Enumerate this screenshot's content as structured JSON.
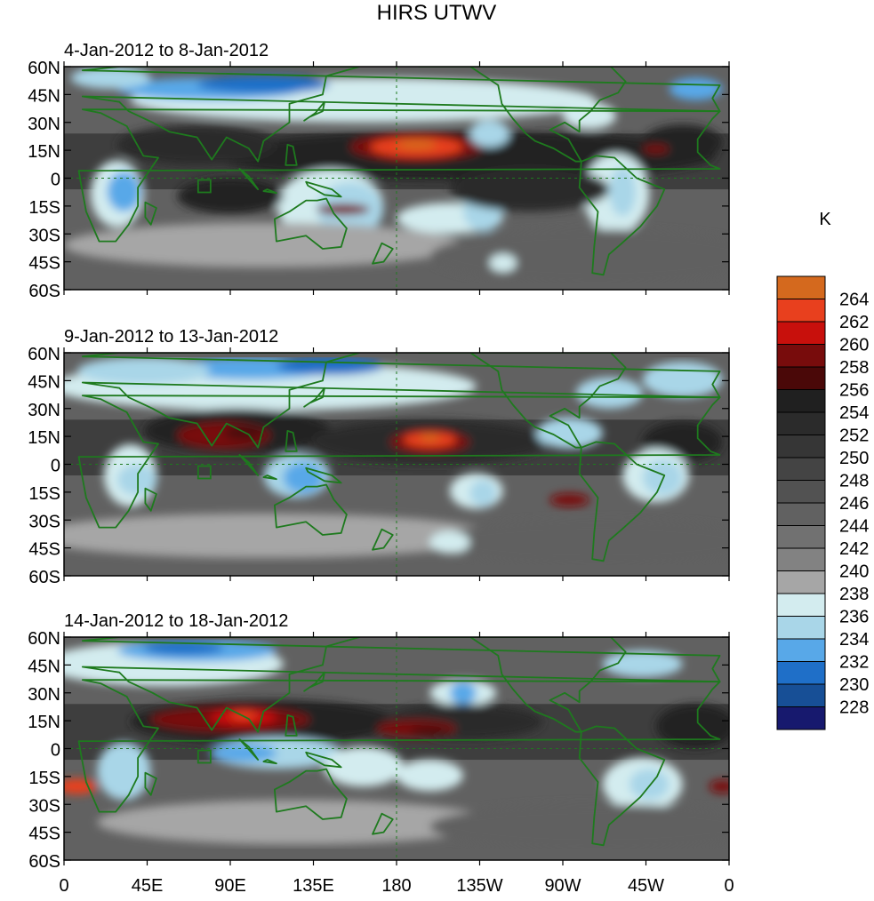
{
  "title": "HIRS UTWV",
  "units_label": "K",
  "panels": [
    {
      "date_range": "4-Jan-2012 to 8-Jan-2012"
    },
    {
      "date_range": "9-Jan-2012 to 13-Jan-2012"
    },
    {
      "date_range": "14-Jan-2012 to 18-Jan-2012"
    }
  ],
  "lat_labels": [
    "60N",
    "45N",
    "30N",
    "15N",
    "0",
    "15S",
    "30S",
    "45S",
    "60S"
  ],
  "lon_labels": [
    "0",
    "45E",
    "90E",
    "135E",
    "180",
    "135W",
    "90W",
    "45W",
    "0"
  ],
  "colorbar": {
    "levels": [
      "264",
      "262",
      "260",
      "258",
      "256",
      "254",
      "252",
      "250",
      "248",
      "246",
      "244",
      "242",
      "240",
      "238",
      "236",
      "234",
      "232",
      "230",
      "228"
    ],
    "colors": [
      "#d4691e",
      "#e8401e",
      "#c8100c",
      "#780c0c",
      "#4a0808",
      "#202020",
      "#2b2b2b",
      "#363636",
      "#444444",
      "#525252",
      "#616161",
      "#717171",
      "#828282",
      "#a6a6a6",
      "#d3ecef",
      "#a9d6e8",
      "#58a8e8",
      "#1f6fc8",
      "#174f96",
      "#17196e"
    ]
  },
  "map_colors": {
    "coastline": "#1e7a1e"
  }
}
